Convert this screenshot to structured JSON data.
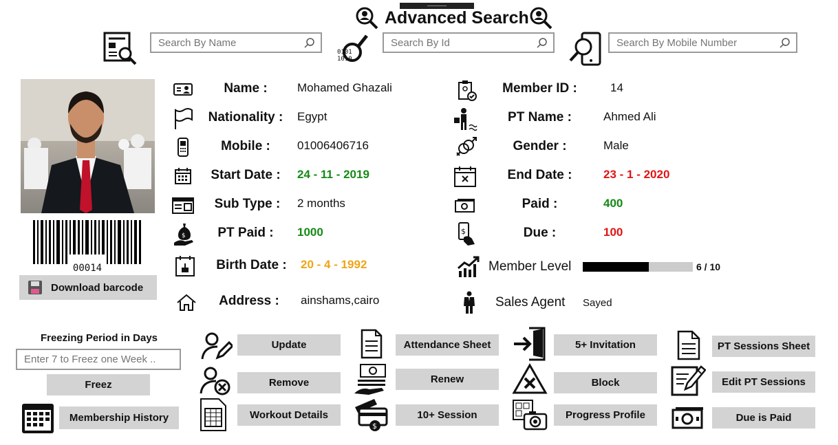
{
  "header": {
    "title": "Advanced Search"
  },
  "search": {
    "name_placeholder": "Search By Name",
    "id_placeholder": "Search By Id",
    "mobile_placeholder": "Search By Mobile Number"
  },
  "barcode": {
    "number": "00014",
    "download_label": "Download barcode"
  },
  "member": {
    "name_label": "Name :",
    "name": "Mohamed Ghazali",
    "nationality_label": "Nationality :",
    "nationality": "Egypt",
    "mobile_label": "Mobile :",
    "mobile": "01006406716",
    "start_date_label": "Start Date :",
    "start_date": "24 - 11 - 2019",
    "sub_type_label": "Sub Type :",
    "sub_type": "2 months",
    "pt_paid_label": "PT Paid :",
    "pt_paid": "1000",
    "birth_date_label": "Birth Date :",
    "birth_date": "20 - 4 - 1992",
    "address_label": "Address :",
    "address": "ainshams,cairo",
    "member_id_label": "Member ID :",
    "member_id": "14",
    "pt_name_label": "PT Name :",
    "pt_name": "Ahmed Ali",
    "gender_label": "Gender  :",
    "gender": "Male",
    "end_date_label": "End Date :",
    "end_date": "23 - 1 - 2020",
    "paid_label": "Paid :",
    "paid": "400",
    "due_label": "Due :",
    "due": "100",
    "level_label": "Member Level",
    "level_text": "6 / 10",
    "level_fraction": 0.6,
    "sales_agent_label": "Sales Agent",
    "sales_agent": "Sayed"
  },
  "freeze": {
    "title": "Freezing Period in Days",
    "placeholder": "Enter 7 to Freez one Week ..",
    "button": "Freez",
    "history_button": "Membership History"
  },
  "actions": {
    "update": "Update",
    "remove": "Remove",
    "workout": "Workout Details",
    "attendance": "Attendance Sheet",
    "renew": "Renew",
    "ten_session": "10+ Session",
    "invitation": "5+ Invitation",
    "block": "Block",
    "progress": "Progress Profile",
    "pt_sheet": "PT Sessions Sheet",
    "edit_pt": "Edit PT Sessions",
    "due_paid": "Due is Paid"
  },
  "colors": {
    "green": "#148a14",
    "red": "#e01414",
    "orange": "#f0a416",
    "button_bg": "#d3d3d3"
  }
}
